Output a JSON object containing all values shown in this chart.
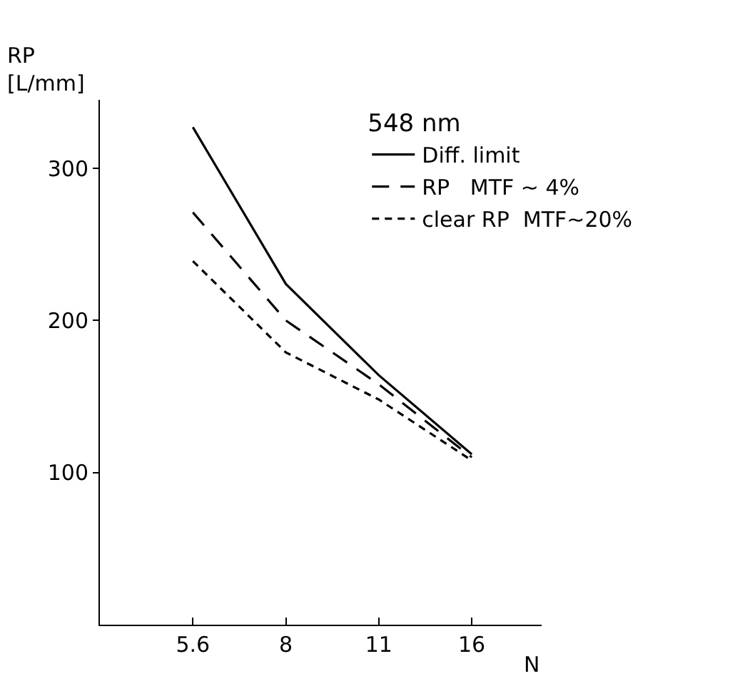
{
  "chart_data": {
    "type": "line",
    "xlabel": "N",
    "ylabel": "RP\n[L/mm]",
    "legend_title": "548 nm",
    "categories": [
      "5.6",
      "8",
      "11",
      "16"
    ],
    "series": [
      {
        "name": "Diff. limit",
        "color": "#000000",
        "line_style": "solid",
        "values": [
          327,
          224,
          164,
          112
        ]
      },
      {
        "name": "RP   MTF ~ 4%",
        "color": "#000000",
        "line_style": "dashed",
        "values": [
          271,
          200,
          158,
          110
        ]
      },
      {
        "name": "clear RP  MTF~20%",
        "color": "#000000",
        "line_style": "dotted",
        "values": [
          239,
          179,
          148,
          108
        ]
      }
    ],
    "ylim": [
      0,
      345
    ],
    "yticks": [
      100,
      200,
      300
    ],
    "grid": false,
    "legend": "top right",
    "marker": "none"
  }
}
